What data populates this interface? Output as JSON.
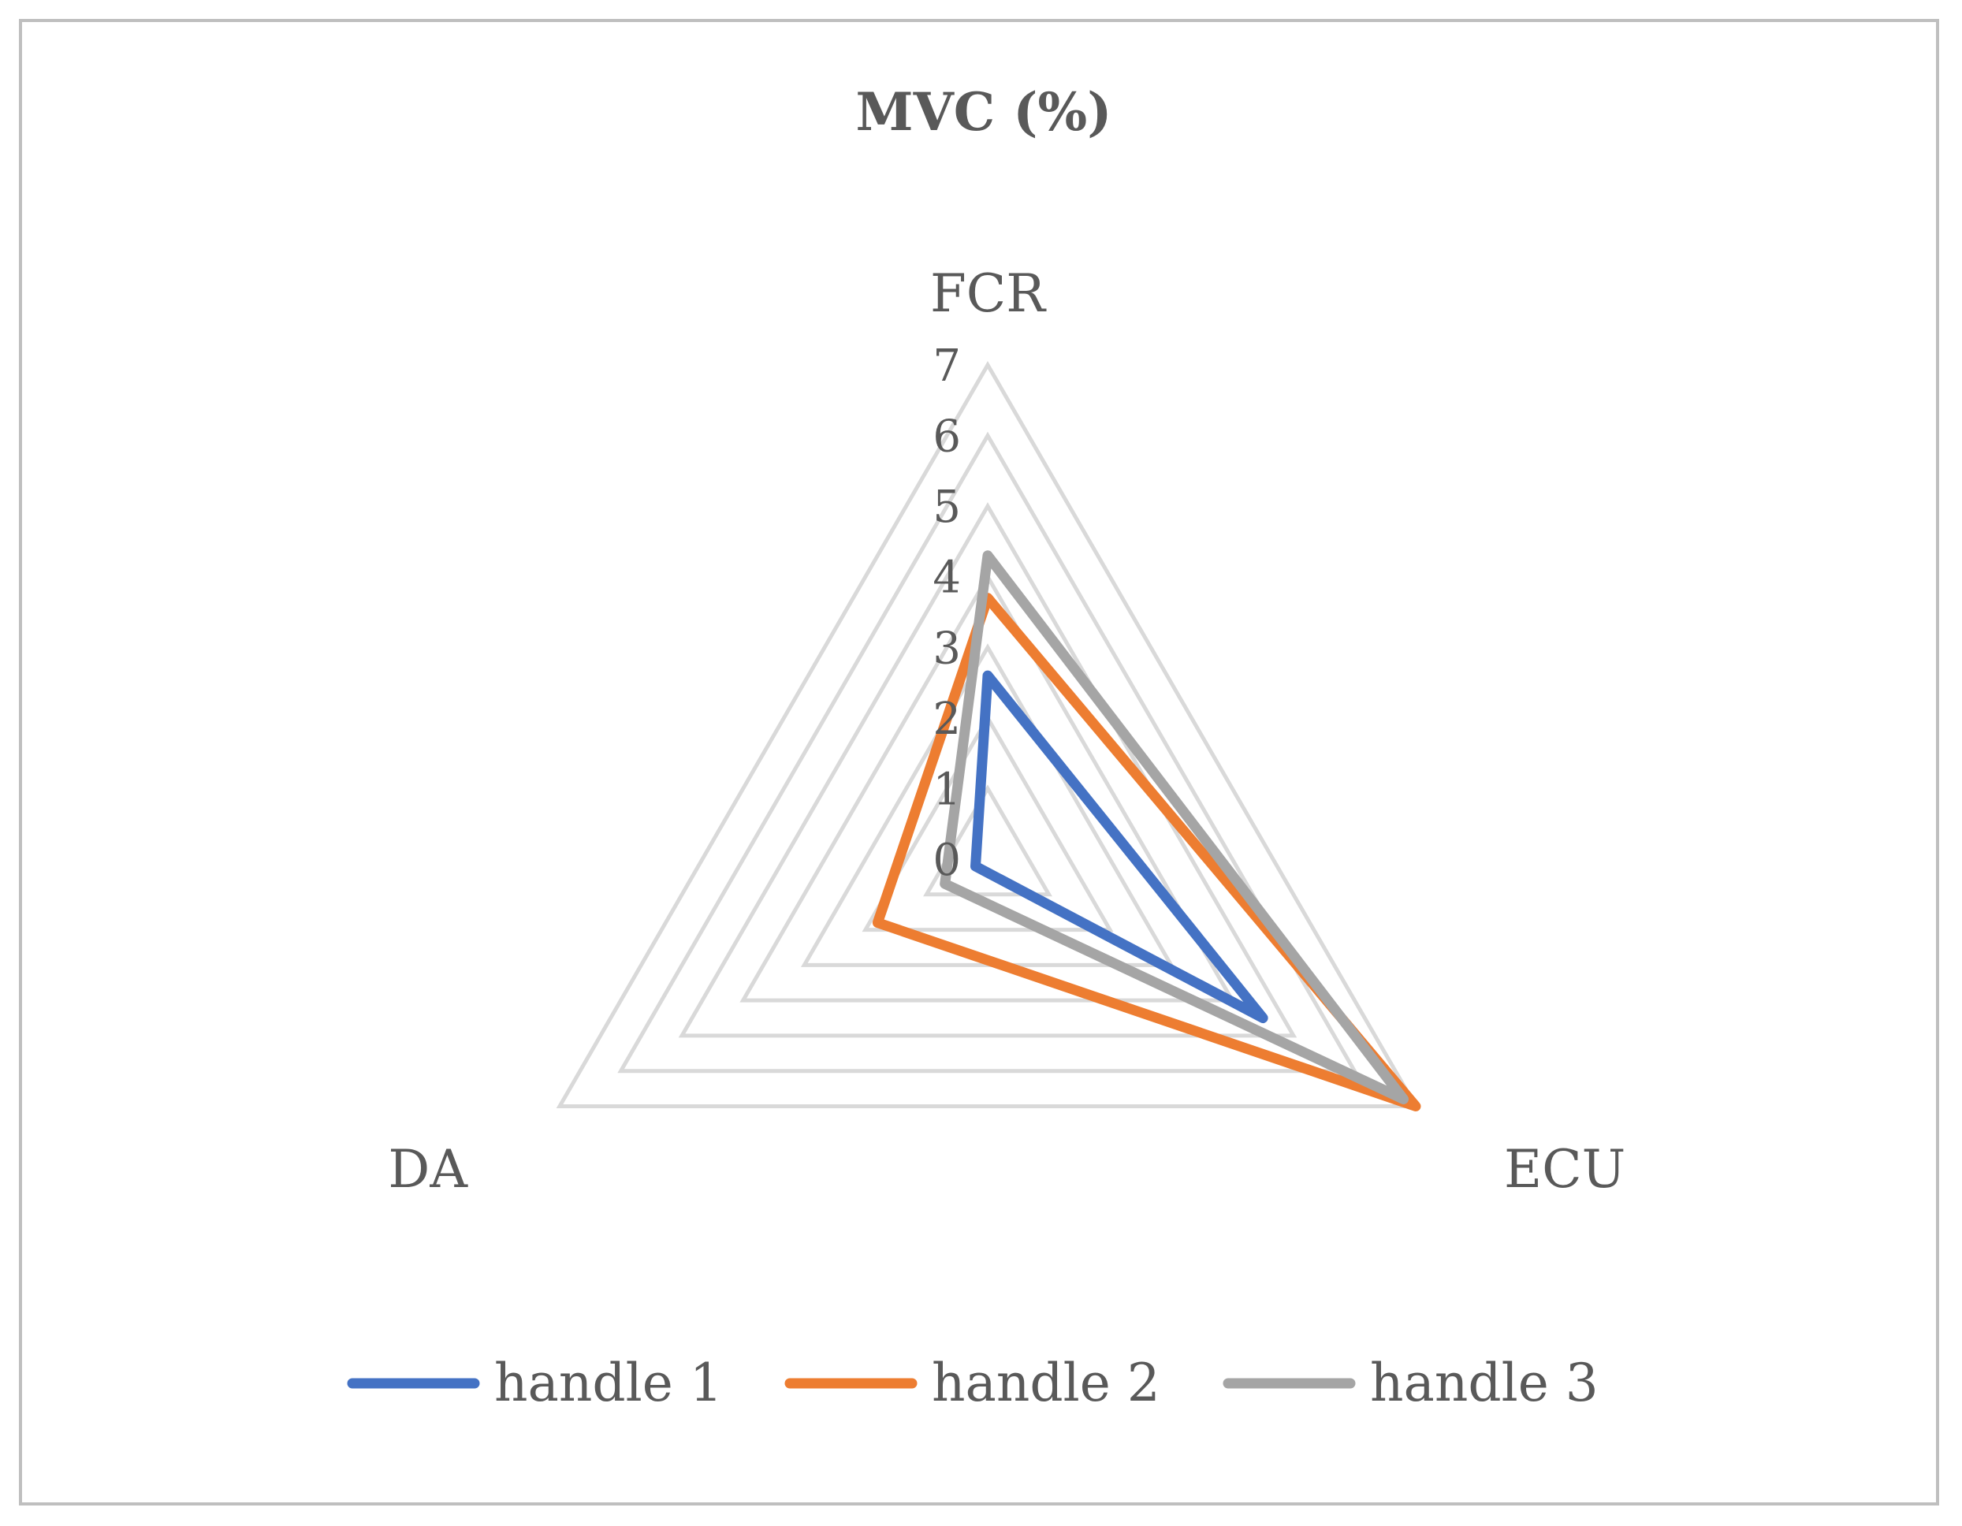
{
  "chart_data": {
    "type": "radar",
    "title": "MVC (%)",
    "categories": [
      "FCR",
      "ECU",
      "DA"
    ],
    "rlim": [
      0,
      7
    ],
    "ticks": [
      "0",
      "1",
      "2",
      "3",
      "4",
      "5",
      "6",
      "7"
    ],
    "grid": true,
    "legend_position": "bottom",
    "series": [
      {
        "name": "handle 1",
        "color": "#4472c4",
        "values": [
          2.6,
          4.5,
          0.2
        ]
      },
      {
        "name": "handle 2",
        "color": "#ed7d31",
        "values": [
          3.7,
          7.0,
          1.8
        ]
      },
      {
        "name": "handle 3",
        "color": "#a5a5a5",
        "values": [
          4.3,
          6.8,
          0.7
        ]
      }
    ]
  }
}
